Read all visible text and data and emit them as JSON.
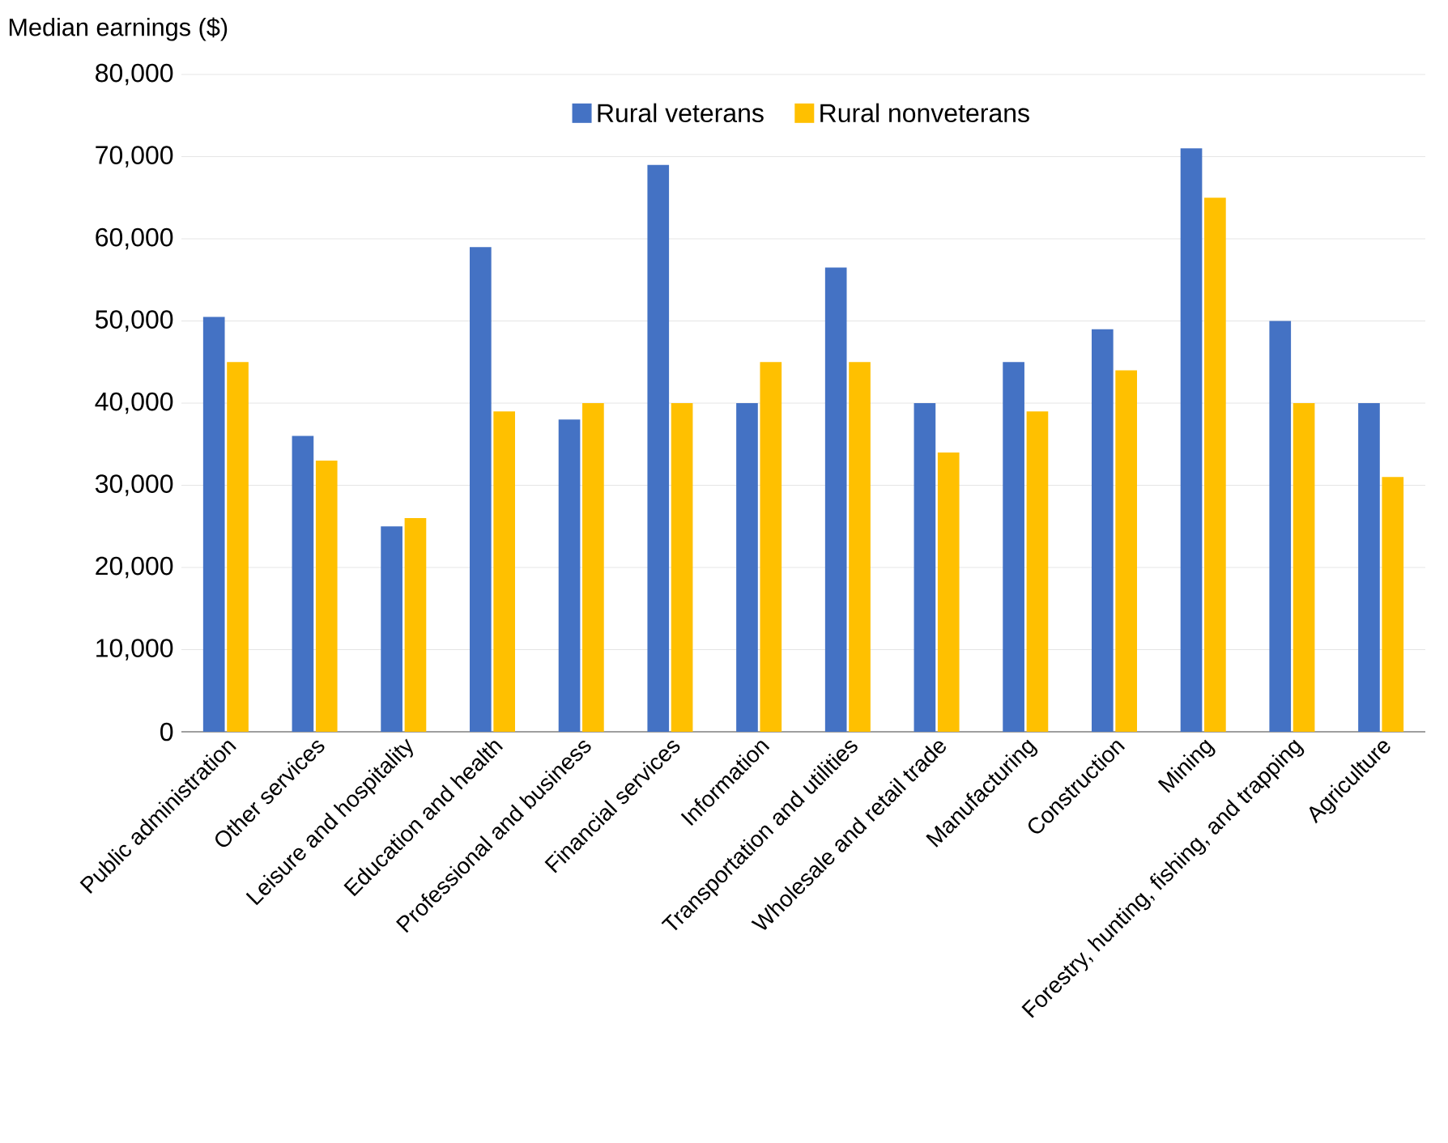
{
  "chart_data": {
    "type": "bar",
    "ylabel": "Median earnings ($)",
    "categories": [
      "Public administration",
      "Other services",
      "Leisure and hospitality",
      "Education and health",
      "Professional and business",
      "Financial services",
      "Information",
      "Transportation and utilities",
      "Wholesale and retail trade",
      "Manufacturing",
      "Construction",
      "Mining",
      "Forestry, hunting, fishing, and trapping",
      "Agriculture"
    ],
    "series": [
      {
        "name": "Rural veterans",
        "color": "#4472c4",
        "values": [
          50500,
          36000,
          25000,
          59000,
          38000,
          69000,
          40000,
          56500,
          40000,
          45000,
          49000,
          71000,
          50000,
          40000
        ]
      },
      {
        "name": "Rural nonveterans",
        "color": "#ffc000",
        "values": [
          45000,
          33000,
          26000,
          39000,
          40000,
          40000,
          45000,
          45000,
          34000,
          39000,
          44000,
          65000,
          40000,
          31000
        ]
      }
    ],
    "ylim": [
      0,
      80000
    ],
    "yticks": [
      0,
      {
        "value": 10000,
        "label": "10,000"
      },
      {
        "value": 20000,
        "label": "20,000"
      },
      {
        "value": 30000,
        "label": "30,000"
      },
      {
        "value": 40000,
        "label": "40,000"
      },
      {
        "value": 50000,
        "label": "50,000"
      },
      {
        "value": 60000,
        "label": "60,000"
      },
      {
        "value": 70000,
        "label": "70,000"
      },
      {
        "value": 80000,
        "label": "80,000"
      }
    ],
    "grid": "y",
    "legend": "top"
  }
}
